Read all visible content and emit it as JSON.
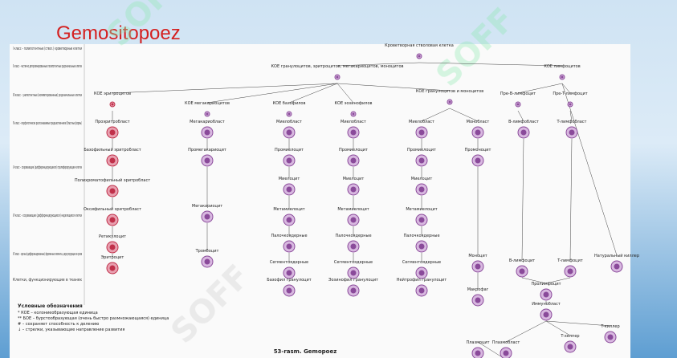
{
  "title": "Gemositopoez",
  "caption": "53-rasm. Gemopoez",
  "classes": [
    "I класс – полипотентные (ствол.) кроветворные клетки",
    "II класс – частично детерминированные полипотентные родоначальные клетки",
    "III класс – унипотентные (коммитированные) родоначальные клетки",
    "IV класс – морфологически распознаваемые предшественники (бластные формы)",
    "V класс – созревающие (дифференцирующиеся) пролиферирующие клетки",
    "VI класс – созревающие (дифференцирующиеся) неделящиеся клетки",
    "VII класс – зрелые (дифференцированные) форменные элементы, циркулирующие в крови",
    "Клетки, функционирующие в тканях"
  ],
  "legend": {
    "title": "Условные обозначения",
    "items": [
      "* КОЕ – колониеобразующая единица",
      "** БОЕ – бурстообразующая (очень быстро размножающаяся) единица",
      "# – сохраняет способность к делению",
      "↓ – стрелки, указывающие направление развития"
    ]
  },
  "nodes": [
    "Кроветворная стволовая клетка",
    "КОЕ гранулоцитов, эритроцитов, мегакариоцитов, моноцитов",
    "КОЕ лимфоцитов",
    "КОЕ эритроцитов",
    "КОЕ мегакариоцитов",
    "КОЕ базофилов",
    "КОЕ эозинофилов",
    "КОЕ гранулоцитов и моноцитов",
    "Пре-B-лимфоцит",
    "Пре-T-лимфоцит",
    "Проэритробласт",
    "Мегакариобласт",
    "Миелобласт",
    "Миелобласт",
    "Миелобласт",
    "Монобласт",
    "B-лимфобласт",
    "T-лимфобласт",
    "Базофильный эритробласт",
    "Промегакариоцит",
    "Промиелоцит",
    "Промиелоцит",
    "Промиелоцит",
    "Промоноцит",
    "Полихроматофильный эритробласт",
    "Миелоцит",
    "Миелоцит",
    "Миелоцит",
    "Оксифильный эритробласт",
    "Мегакариоцит",
    "Метамиелоцит",
    "Метамиелоцит",
    "Метамиелоцит",
    "Ретикулоцит",
    "Палочкоядерные",
    "Палочкоядерные",
    "Палочкоядерные",
    "Эритроцит",
    "Тромбоцит",
    "Сегментоядерные",
    "Сегментоядерные",
    "Сегментоядерные",
    "Моноцит",
    "B-лимфоцит",
    "T-лимфоцит",
    "Натуральный киллер",
    "Базофил гранулоцит",
    "Эозинофил гранулоцит",
    "Нейтрофил гранулоцит",
    "Макрофаг",
    "Пролимфоцит",
    "Иммунобласт",
    "Плазмоцит",
    "Плазмобласт",
    "T-хелпер",
    "T-киллер"
  ]
}
